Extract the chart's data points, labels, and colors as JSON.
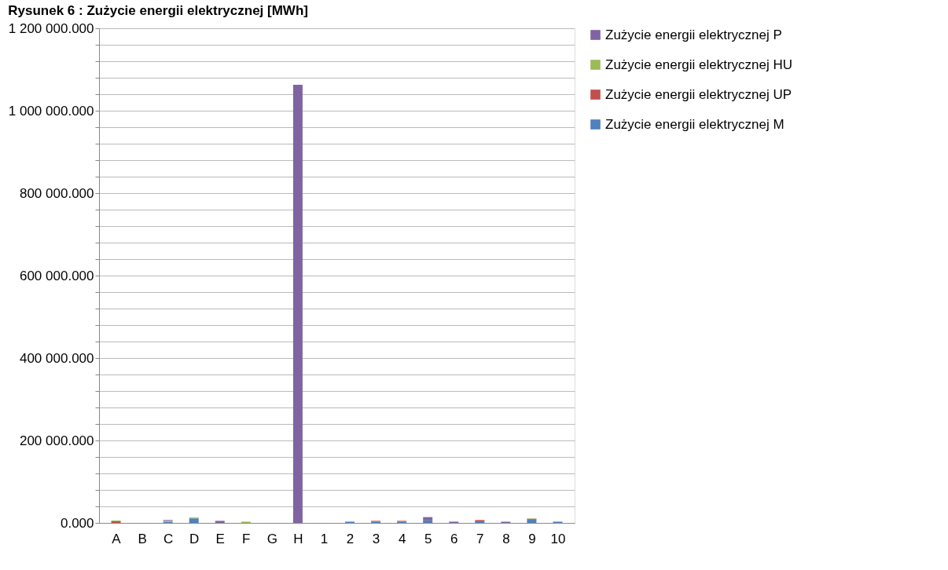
{
  "chart_data": {
    "type": "bar",
    "title": "Rysunek 6 : Zużycie energii elektrycznej [MWh]",
    "stacked": true,
    "categories": [
      "A",
      "B",
      "C",
      "D",
      "E",
      "F",
      "G",
      "H",
      "1",
      "2",
      "3",
      "4",
      "5",
      "6",
      "7",
      "8",
      "9",
      "10"
    ],
    "series": [
      {
        "name": "Zużycie energii elektrycznej M",
        "color": "#4f81bd",
        "values": [
          0,
          0,
          3000,
          11000,
          0,
          0,
          0,
          0,
          0,
          3000,
          3000,
          3000,
          6000,
          0,
          4000,
          0,
          8000,
          3000
        ]
      },
      {
        "name": "Zużycie energii elektrycznej UP",
        "color": "#c0504d",
        "values": [
          4000,
          0,
          null,
          0,
          0,
          0,
          0,
          0,
          0,
          0,
          2000,
          2000,
          0,
          0,
          3000,
          0,
          2000,
          0
        ]
      },
      {
        "name": "Zużycie energii elektrycznej HU",
        "color": "#9bbb59",
        "values": [
          2000,
          0,
          2000,
          2000,
          0,
          3000,
          0,
          0,
          0,
          0,
          0,
          0,
          0,
          0,
          null,
          0,
          1000,
          0
        ]
      },
      {
        "name": "Zużycie energii elektrycznej P",
        "color": "#8064a2",
        "values": [
          0,
          0,
          2000,
          0,
          5000,
          0,
          0,
          1063000,
          0,
          0,
          0,
          0,
          8000,
          3000,
          0,
          3000,
          0,
          0
        ]
      }
    ],
    "ylim": [
      0,
      1200000
    ],
    "yticks": [
      {
        "value": 0,
        "label": "0.000"
      },
      {
        "value": 40000,
        "label": null
      },
      {
        "value": 80000,
        "label": null
      },
      {
        "value": 120000,
        "label": null
      },
      {
        "value": 160000,
        "label": null
      },
      {
        "value": 200000,
        "label": "200 000.000"
      },
      {
        "value": 240000,
        "label": null
      },
      {
        "value": 280000,
        "label": null
      },
      {
        "value": 320000,
        "label": null
      },
      {
        "value": 360000,
        "label": null
      },
      {
        "value": 400000,
        "label": "400 000.000"
      },
      {
        "value": 440000,
        "label": null
      },
      {
        "value": 480000,
        "label": null
      },
      {
        "value": 520000,
        "label": null
      },
      {
        "value": 560000,
        "label": null
      },
      {
        "value": 600000,
        "label": "600 000.000"
      },
      {
        "value": 640000,
        "label": null
      },
      {
        "value": 680000,
        "label": null
      },
      {
        "value": 720000,
        "label": null
      },
      {
        "value": 760000,
        "label": null
      },
      {
        "value": 800000,
        "label": "800 000.000"
      },
      {
        "value": 840000,
        "label": null
      },
      {
        "value": 880000,
        "label": null
      },
      {
        "value": 920000,
        "label": null
      },
      {
        "value": 960000,
        "label": null
      },
      {
        "value": 1000000,
        "label": "1 000 000.000"
      },
      {
        "value": 1040000,
        "label": null
      },
      {
        "value": 1080000,
        "label": null
      },
      {
        "value": 1120000,
        "label": null
      },
      {
        "value": 1160000,
        "label": null
      },
      {
        "value": 1200000,
        "label": "1 200 000.000"
      }
    ],
    "grid": "y",
    "legend": "right"
  }
}
